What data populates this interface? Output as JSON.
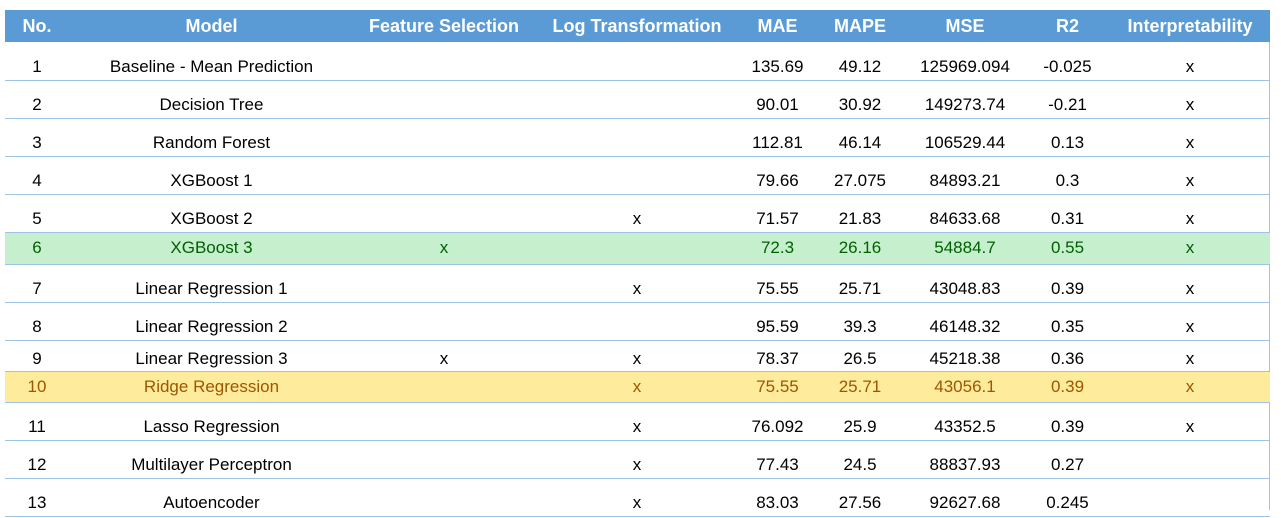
{
  "table": {
    "headers": [
      "No.",
      "Model",
      "Feature Selection",
      "Log Transformation",
      "MAE",
      "MAPE",
      "MSE",
      "R2",
      "Interpretability"
    ],
    "rows": [
      {
        "no": "1",
        "model": "Baseline - Mean Prediction",
        "feature_selection": "",
        "log_transformation": "",
        "mae": "135.69",
        "mape": "49.12",
        "mse": "125969.094",
        "r2": "-0.025",
        "interpretability": "x"
      },
      {
        "no": "2",
        "model": "Decision Tree",
        "feature_selection": "",
        "log_transformation": "",
        "mae": "90.01",
        "mape": "30.92",
        "mse": "149273.74",
        "r2": "-0.21",
        "interpretability": "x"
      },
      {
        "no": "3",
        "model": "Random Forest",
        "feature_selection": "",
        "log_transformation": "",
        "mae": "112.81",
        "mape": "46.14",
        "mse": "106529.44",
        "r2": "0.13",
        "interpretability": "x"
      },
      {
        "no": "4",
        "model": "XGBoost 1",
        "feature_selection": "",
        "log_transformation": "",
        "mae": "79.66",
        "mape": "27.075",
        "mse": "84893.21",
        "r2": "0.3",
        "interpretability": "x"
      },
      {
        "no": "5",
        "model": "XGBoost 2",
        "feature_selection": "",
        "log_transformation": "x",
        "mae": "71.57",
        "mape": "21.83",
        "mse": "84633.68",
        "r2": "0.31",
        "interpretability": "x"
      },
      {
        "no": "6",
        "model": "XGBoost 3",
        "feature_selection": "x",
        "log_transformation": "",
        "mae": "72.3",
        "mape": "26.16",
        "mse": "54884.7",
        "r2": "0.55",
        "interpretability": "x"
      },
      {
        "no": "7",
        "model": "Linear Regression 1",
        "feature_selection": "",
        "log_transformation": "x",
        "mae": "75.55",
        "mape": "25.71",
        "mse": "43048.83",
        "r2": "0.39",
        "interpretability": "x"
      },
      {
        "no": "8",
        "model": "Linear Regression 2",
        "feature_selection": "",
        "log_transformation": "",
        "mae": "95.59",
        "mape": "39.3",
        "mse": "46148.32",
        "r2": "0.35",
        "interpretability": "x"
      },
      {
        "no": "9",
        "model": "Linear Regression 3",
        "feature_selection": "x",
        "log_transformation": "x",
        "mae": "78.37",
        "mape": "26.5",
        "mse": "45218.38",
        "r2": "0.36",
        "interpretability": "x"
      },
      {
        "no": "10",
        "model": "Ridge Regression",
        "feature_selection": "",
        "log_transformation": "x",
        "mae": "75.55",
        "mape": "25.71",
        "mse": "43056.1",
        "r2": "0.39",
        "interpretability": "x"
      },
      {
        "no": "11",
        "model": "Lasso Regression",
        "feature_selection": "",
        "log_transformation": "x",
        "mae": "76.092",
        "mape": "25.9",
        "mse": "43352.5",
        "r2": "0.39",
        "interpretability": "x"
      },
      {
        "no": "12",
        "model": "Multilayer Perceptron",
        "feature_selection": "",
        "log_transformation": "x",
        "mae": "77.43",
        "mape": "24.5",
        "mse": "88837.93",
        "r2": "0.27",
        "interpretability": ""
      },
      {
        "no": "13",
        "model": "Autoencoder",
        "feature_selection": "",
        "log_transformation": "x",
        "mae": "83.03",
        "mape": "27.56",
        "mse": "92627.68",
        "r2": "0.245",
        "interpretability": ""
      }
    ]
  },
  "highlights": {
    "green_row_background": "#c6efce",
    "green_row_text": "#006100",
    "yellow_row_background": "#ffeb9c",
    "yellow_row_text": "#9c5700",
    "header_background": "#5b9bd5",
    "header_text": "#ffffff"
  }
}
